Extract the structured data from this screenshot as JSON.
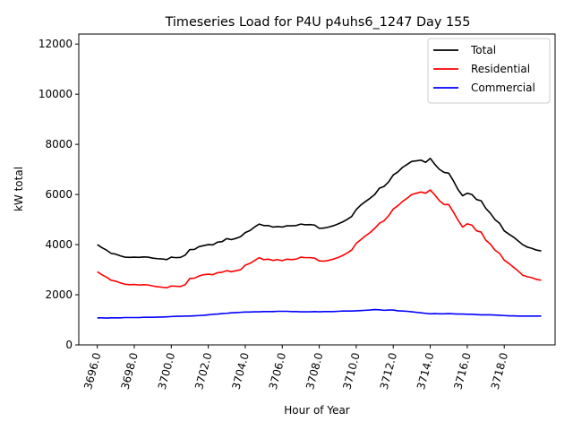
{
  "chart_data": {
    "type": "line",
    "title": "Timeseries Load for P4U p4uhs6_1247  Day 155",
    "xlabel": "Hour of Year",
    "ylabel": "kW total",
    "xlim": [
      3695.0,
      3720.75
    ],
    "ylim": [
      0,
      12400
    ],
    "xticks": [
      3696,
      3698,
      3700,
      3702,
      3704,
      3706,
      3708,
      3710,
      3712,
      3714,
      3716,
      3718
    ],
    "xtick_labels": [
      "3696.0",
      "3698.0",
      "3700.0",
      "3702.0",
      "3704.0",
      "3706.0",
      "3708.0",
      "3710.0",
      "3712.0",
      "3714.0",
      "3716.0",
      "3718.0"
    ],
    "yticks": [
      0,
      2000,
      4000,
      6000,
      8000,
      10000,
      12000
    ],
    "ytick_labels": [
      "0",
      "2000",
      "4000",
      "6000",
      "8000",
      "10000",
      "12000"
    ],
    "x_start": 3696.0,
    "x_step": 0.25,
    "legend_location": "top-right",
    "series": [
      {
        "name": "Total",
        "color": "#000000",
        "values": [
          4000,
          3880,
          3780,
          3650,
          3620,
          3550,
          3500,
          3490,
          3500,
          3490,
          3510,
          3500,
          3460,
          3440,
          3430,
          3400,
          3500,
          3480,
          3490,
          3580,
          3800,
          3810,
          3920,
          3960,
          4000,
          3990,
          4100,
          4120,
          4240,
          4200,
          4250,
          4320,
          4480,
          4560,
          4700,
          4820,
          4760,
          4760,
          4700,
          4720,
          4700,
          4750,
          4750,
          4760,
          4820,
          4790,
          4800,
          4780,
          4650,
          4660,
          4700,
          4750,
          4820,
          4900,
          5000,
          5120,
          5400,
          5580,
          5720,
          5850,
          6000,
          6250,
          6320,
          6500,
          6780,
          6900,
          7080,
          7200,
          7320,
          7340,
          7370,
          7280,
          7440,
          7200,
          7000,
          6880,
          6850,
          6550,
          6200,
          5950,
          6050,
          6000,
          5800,
          5750,
          5450,
          5250,
          5000,
          4850,
          4550,
          4420,
          4300,
          4150,
          4000,
          3900,
          3850,
          3780,
          3750
        ]
      },
      {
        "name": "Residential",
        "color": "#ff0000",
        "values": [
          2920,
          2800,
          2700,
          2580,
          2540,
          2470,
          2420,
          2400,
          2410,
          2390,
          2400,
          2390,
          2350,
          2320,
          2300,
          2280,
          2350,
          2340,
          2330,
          2400,
          2650,
          2660,
          2750,
          2800,
          2820,
          2800,
          2880,
          2900,
          2960,
          2920,
          2960,
          3000,
          3180,
          3250,
          3360,
          3480,
          3400,
          3420,
          3370,
          3400,
          3360,
          3420,
          3400,
          3420,
          3500,
          3480,
          3480,
          3460,
          3350,
          3340,
          3370,
          3420,
          3480,
          3560,
          3660,
          3780,
          4050,
          4200,
          4350,
          4480,
          4650,
          4850,
          4950,
          5150,
          5420,
          5550,
          5720,
          5850,
          6000,
          6050,
          6100,
          6050,
          6180,
          5980,
          5750,
          5600,
          5600,
          5300,
          4980,
          4700,
          4830,
          4780,
          4550,
          4500,
          4180,
          4020,
          3780,
          3650,
          3380,
          3250,
          3100,
          2950,
          2780,
          2720,
          2680,
          2610,
          2580
        ]
      },
      {
        "name": "Commercial",
        "color": "#0000ff",
        "values": [
          1080,
          1080,
          1070,
          1080,
          1080,
          1080,
          1090,
          1090,
          1090,
          1090,
          1100,
          1100,
          1100,
          1110,
          1110,
          1120,
          1130,
          1140,
          1140,
          1150,
          1150,
          1160,
          1170,
          1180,
          1200,
          1220,
          1230,
          1250,
          1260,
          1280,
          1290,
          1300,
          1310,
          1310,
          1320,
          1320,
          1330,
          1330,
          1330,
          1340,
          1340,
          1340,
          1330,
          1330,
          1320,
          1320,
          1320,
          1330,
          1320,
          1330,
          1330,
          1330,
          1340,
          1350,
          1350,
          1350,
          1360,
          1370,
          1380,
          1390,
          1410,
          1400,
          1380,
          1390,
          1390,
          1360,
          1350,
          1340,
          1320,
          1300,
          1280,
          1260,
          1240,
          1250,
          1240,
          1240,
          1250,
          1240,
          1230,
          1230,
          1220,
          1220,
          1210,
          1200,
          1200,
          1200,
          1190,
          1180,
          1170,
          1160,
          1160,
          1150,
          1150,
          1150,
          1150,
          1150,
          1150
        ]
      }
    ]
  }
}
